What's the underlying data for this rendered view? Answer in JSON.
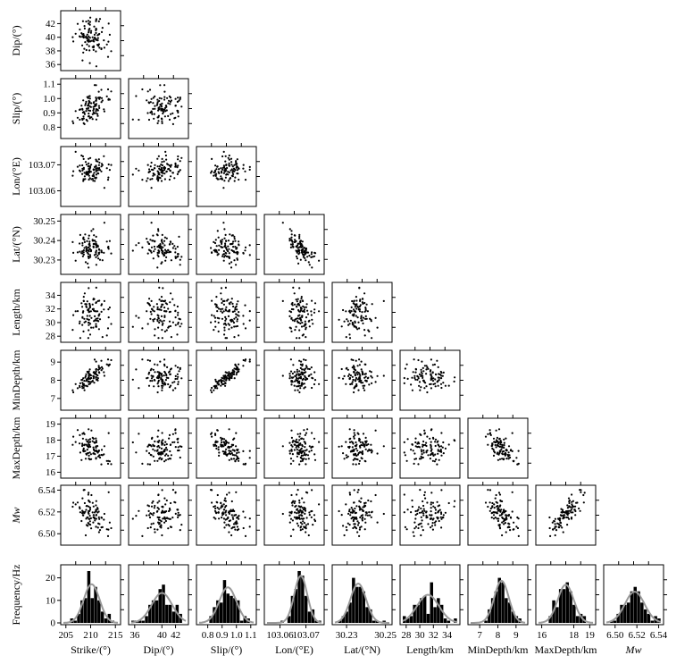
{
  "figure": {
    "panel_style": "lower-triangular scatter matrix with marginal histograms and fitted normal curves",
    "point_color": "#000000",
    "bar_color": "#000000",
    "curve_color": "#999999",
    "frame_color": "#000000"
  },
  "chart_data": {
    "type": "scatter",
    "variables": [
      {
        "key": "strike",
        "label": "Strike/(°)",
        "range": [
          204.5,
          215.5
        ],
        "ticks": [
          205,
          210,
          215
        ],
        "tick_labels": [
          "205",
          "210",
          "215"
        ],
        "mean": 210.2,
        "sd": 1.6
      },
      {
        "key": "dip",
        "label": "Dip/(°)",
        "range": [
          35.5,
          43.5
        ],
        "ticks": [
          36,
          38,
          40,
          42
        ],
        "tick_labels": [
          "36",
          "38",
          "40",
          "42"
        ],
        "hist_ticks": [
          36,
          40,
          42
        ],
        "hist_tick_labels": [
          "36",
          "40",
          "42"
        ],
        "mean": 40.0,
        "sd": 1.5
      },
      {
        "key": "slip",
        "label": "Slip/(°)",
        "range": [
          0.74,
          1.12
        ],
        "ticks": [
          0.8,
          0.9,
          1.0,
          1.1
        ],
        "tick_labels": [
          "0.8",
          "0.9",
          "1.0",
          "1.1"
        ],
        "hist_ticks": [
          0.8,
          0.9,
          1.0,
          1.1
        ],
        "hist_tick_labels": [
          "0.8",
          "0.9",
          "1.0",
          "1.1"
        ],
        "mean": 0.94,
        "sd": 0.06
      },
      {
        "key": "lon",
        "label": "Lon/(°E)",
        "range": [
          103.055,
          103.076
        ],
        "ticks": [
          103.06,
          103.07
        ],
        "tick_labels": [
          "103.06",
          "103.07"
        ],
        "mean": 103.068,
        "sd": 0.0025
      },
      {
        "key": "lat",
        "label": "Lat/(°N)",
        "range": [
          30.224,
          30.252
        ],
        "ticks": [
          30.23,
          30.24,
          30.25
        ],
        "tick_labels": [
          "30.23",
          "30.24",
          "30.25"
        ],
        "hist_ticks": [
          30.23,
          30.25
        ],
        "hist_tick_labels": [
          "30.23",
          "30.25"
        ],
        "mean": 30.236,
        "sd": 0.004
      },
      {
        "key": "length",
        "label": "Length/km",
        "range": [
          27.5,
          35.5
        ],
        "ticks": [
          28,
          30,
          32,
          34
        ],
        "tick_labels": [
          "28",
          "30",
          "32",
          "34"
        ],
        "mean": 31.2,
        "sd": 1.6
      },
      {
        "key": "mindepth",
        "label": "MinDepth/km",
        "range": [
          6.5,
          9.5
        ],
        "ticks": [
          7,
          8,
          9
        ],
        "tick_labels": [
          "7",
          "8",
          "9"
        ],
        "mean": 8.2,
        "sd": 0.4
      },
      {
        "key": "maxdepth",
        "label": "MaxDepth/km",
        "range": [
          15.8,
          19.2
        ],
        "ticks": [
          16,
          17,
          18,
          19
        ],
        "tick_labels": [
          "16",
          "17",
          "18",
          "19"
        ],
        "hist_ticks": [
          16,
          18,
          19
        ],
        "hist_tick_labels": [
          "16",
          "18",
          "19"
        ],
        "mean": 17.5,
        "sd": 0.5
      },
      {
        "key": "mw",
        "label": "Mw",
        "range": [
          6.492,
          6.542
        ],
        "ticks": [
          6.5,
          6.52,
          6.54
        ],
        "tick_labels": [
          "6.50",
          "6.52",
          "6.54"
        ],
        "mean": 6.518,
        "sd": 0.009
      }
    ],
    "hist_ylabel": "Frequency/Hz",
    "hist_ylim": [
      0,
      25
    ],
    "hist_yticks": [
      0,
      10,
      20
    ],
    "hist_bins": 16,
    "sample_count": 100,
    "correlations": {
      "slip|strike": 0.6,
      "lat|lon": -0.7,
      "mindepth|strike": 0.7,
      "mindepth|slip": 0.95,
      "maxdepth|strike": -0.4,
      "maxdepth|slip": -0.6,
      "mw|maxdepth": 0.8
    },
    "grid": false,
    "legend": "none"
  }
}
